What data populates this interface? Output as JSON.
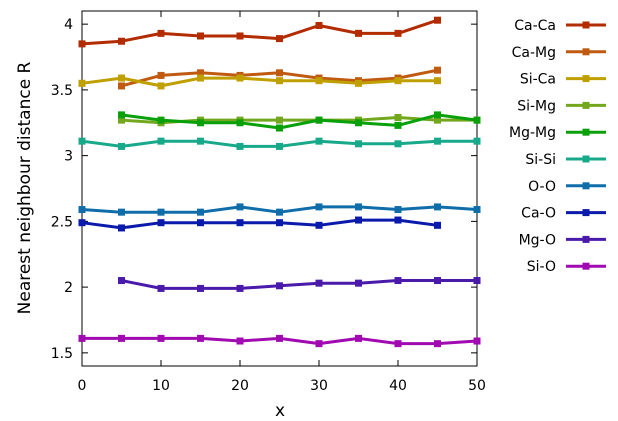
{
  "chart_data": {
    "type": "line",
    "xlabel": "x",
    "ylabel": "Nearest neighbour distance R",
    "xlim": [
      0,
      50
    ],
    "ylim": [
      1.4,
      4.1
    ],
    "xticks": [
      0,
      10,
      20,
      30,
      40,
      50
    ],
    "yticks": [
      1.5,
      2,
      2.5,
      3,
      3.5,
      4
    ],
    "grid": false,
    "legend_position": "outside-right",
    "series": [
      {
        "name": "Ca-Ca",
        "color": "#b22c00",
        "x": [
          0,
          5,
          10,
          15,
          20,
          25,
          30,
          35,
          40,
          45
        ],
        "y": [
          3.85,
          3.87,
          3.93,
          3.91,
          3.91,
          3.89,
          3.99,
          3.93,
          3.93,
          4.03
        ]
      },
      {
        "name": "Ca-Mg",
        "color": "#bf5a10",
        "x": [
          5,
          10,
          15,
          20,
          25,
          30,
          35,
          40,
          45
        ],
        "y": [
          3.53,
          3.61,
          3.63,
          3.61,
          3.63,
          3.59,
          3.57,
          3.59,
          3.65
        ]
      },
      {
        "name": "Si-Ca",
        "color": "#bfa000",
        "x": [
          0,
          5,
          10,
          15,
          20,
          25,
          30,
          35,
          40,
          45
        ],
        "y": [
          3.55,
          3.59,
          3.53,
          3.59,
          3.59,
          3.57,
          3.57,
          3.55,
          3.57,
          3.57
        ]
      },
      {
        "name": "Si-Mg",
        "color": "#73a81e",
        "x": [
          5,
          10,
          15,
          20,
          25,
          30,
          35,
          40,
          45,
          50
        ],
        "y": [
          3.27,
          3.25,
          3.27,
          3.27,
          3.27,
          3.27,
          3.27,
          3.29,
          3.27,
          3.27
        ]
      },
      {
        "name": "Mg-Mg",
        "color": "#0aa00a",
        "x": [
          5,
          10,
          15,
          20,
          25,
          30,
          35,
          40,
          45,
          50
        ],
        "y": [
          3.31,
          3.27,
          3.25,
          3.25,
          3.21,
          3.27,
          3.25,
          3.23,
          3.31,
          3.27
        ]
      },
      {
        "name": "Si-Si",
        "color": "#18a88a",
        "x": [
          0,
          5,
          10,
          15,
          20,
          25,
          30,
          35,
          40,
          45,
          50
        ],
        "y": [
          3.11,
          3.07,
          3.11,
          3.11,
          3.07,
          3.07,
          3.11,
          3.09,
          3.09,
          3.11,
          3.11
        ]
      },
      {
        "name": "O-O",
        "color": "#0f6eaa",
        "x": [
          0,
          5,
          10,
          15,
          20,
          25,
          30,
          35,
          40,
          45,
          50
        ],
        "y": [
          2.59,
          2.57,
          2.57,
          2.57,
          2.61,
          2.57,
          2.61,
          2.61,
          2.59,
          2.61,
          2.59
        ]
      },
      {
        "name": "Ca-O",
        "color": "#0a1aaa",
        "x": [
          0,
          5,
          10,
          15,
          20,
          25,
          30,
          35,
          40,
          45
        ],
        "y": [
          2.49,
          2.45,
          2.49,
          2.49,
          2.49,
          2.49,
          2.47,
          2.51,
          2.51,
          2.47
        ]
      },
      {
        "name": "Mg-O",
        "color": "#4a1aaa",
        "x": [
          5,
          10,
          15,
          20,
          25,
          30,
          35,
          40,
          45,
          50
        ],
        "y": [
          2.05,
          1.99,
          1.99,
          1.99,
          2.01,
          2.03,
          2.03,
          2.05,
          2.05,
          2.05
        ]
      },
      {
        "name": "Si-O",
        "color": "#a00ab0",
        "x": [
          0,
          5,
          10,
          15,
          20,
          25,
          30,
          35,
          40,
          45,
          50
        ],
        "y": [
          1.61,
          1.61,
          1.61,
          1.61,
          1.59,
          1.61,
          1.57,
          1.61,
          1.57,
          1.57,
          1.59
        ]
      }
    ]
  }
}
